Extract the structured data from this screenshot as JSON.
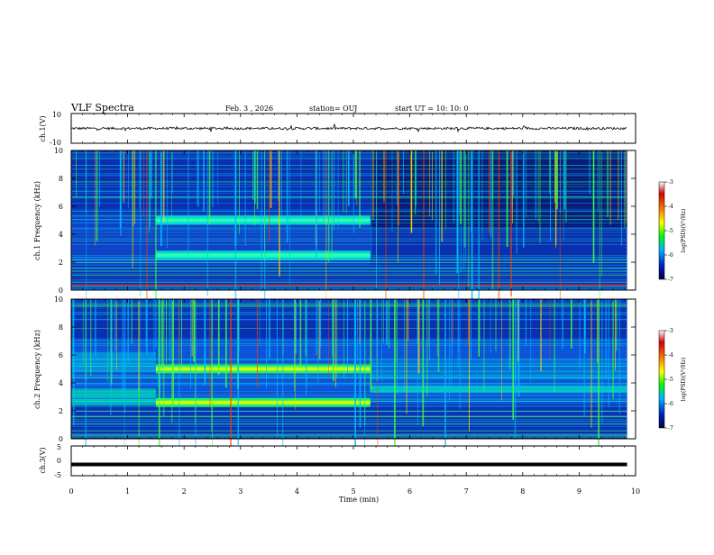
{
  "header": {
    "title": "VLF Spectra",
    "date": "Feb. 3 , 2026",
    "station": "station= OUJ",
    "start_ut": "start UT = 10: 10: 0"
  },
  "chart_data": [
    {
      "type": "line",
      "id": "ch1-waveform",
      "ylabel": "ch.1(V)",
      "ylim": [
        -10,
        10
      ],
      "y_tick_labels": [
        "10",
        "-10"
      ],
      "baseline": 0
    },
    {
      "type": "heatmap",
      "id": "ch1-spectrogram",
      "ylabel": "ch.1 Frequency (kHz)",
      "ylim": [
        0,
        10
      ],
      "y_tick_labels": [
        "0",
        "2",
        "4",
        "6",
        "8",
        "10"
      ],
      "colorbar": {
        "label": "log(PSD)(V²/Hz)",
        "range": [
          -7,
          -3
        ],
        "tick_labels": [
          "-3",
          "-4",
          "-5",
          "-6",
          "-7"
        ],
        "colors": [
          "#ffffff",
          "#d40000",
          "#ff8c00",
          "#ffff00",
          "#00ff00",
          "#00b0ff",
          "#0020c0",
          "#000040"
        ]
      },
      "bands": [
        {
          "t_start": 1.5,
          "t_end": 5.3,
          "f_khz": 5.0
        },
        {
          "t_start": 1.5,
          "t_end": 5.3,
          "f_khz": 2.5
        }
      ],
      "regime_change_min": 5.3
    },
    {
      "type": "heatmap",
      "id": "ch2-spectrogram",
      "ylabel": "ch.2 Frequency (kHz)",
      "ylim": [
        0,
        10
      ],
      "y_tick_labels": [
        "0",
        "2",
        "4",
        "6",
        "8",
        "10"
      ],
      "colorbar": {
        "label": "log(PSD)(V²/Hz)",
        "range": [
          -7,
          -3
        ],
        "tick_labels": [
          "-3",
          "-4",
          "-5",
          "-6",
          "-7"
        ]
      },
      "bands": [
        {
          "t_start": 1.5,
          "t_end": 5.3,
          "f_khz": 5.0
        },
        {
          "t_start": 1.5,
          "t_end": 5.3,
          "f_khz": 2.6
        }
      ],
      "regime_change_min": 5.3
    },
    {
      "type": "line",
      "id": "ch3-waveform",
      "ylabel": "ch.3(V)",
      "ylim": [
        -5,
        5
      ],
      "y_tick_labels": [
        "5",
        "0",
        "-5"
      ],
      "baseline": -1.2
    }
  ],
  "x_axis": {
    "label": "Time (min)",
    "range": [
      0,
      10
    ],
    "data_end": 9.85,
    "tick_labels": [
      "0",
      "1",
      "2",
      "3",
      "4",
      "5",
      "6",
      "7",
      "8",
      "9",
      "10"
    ]
  }
}
